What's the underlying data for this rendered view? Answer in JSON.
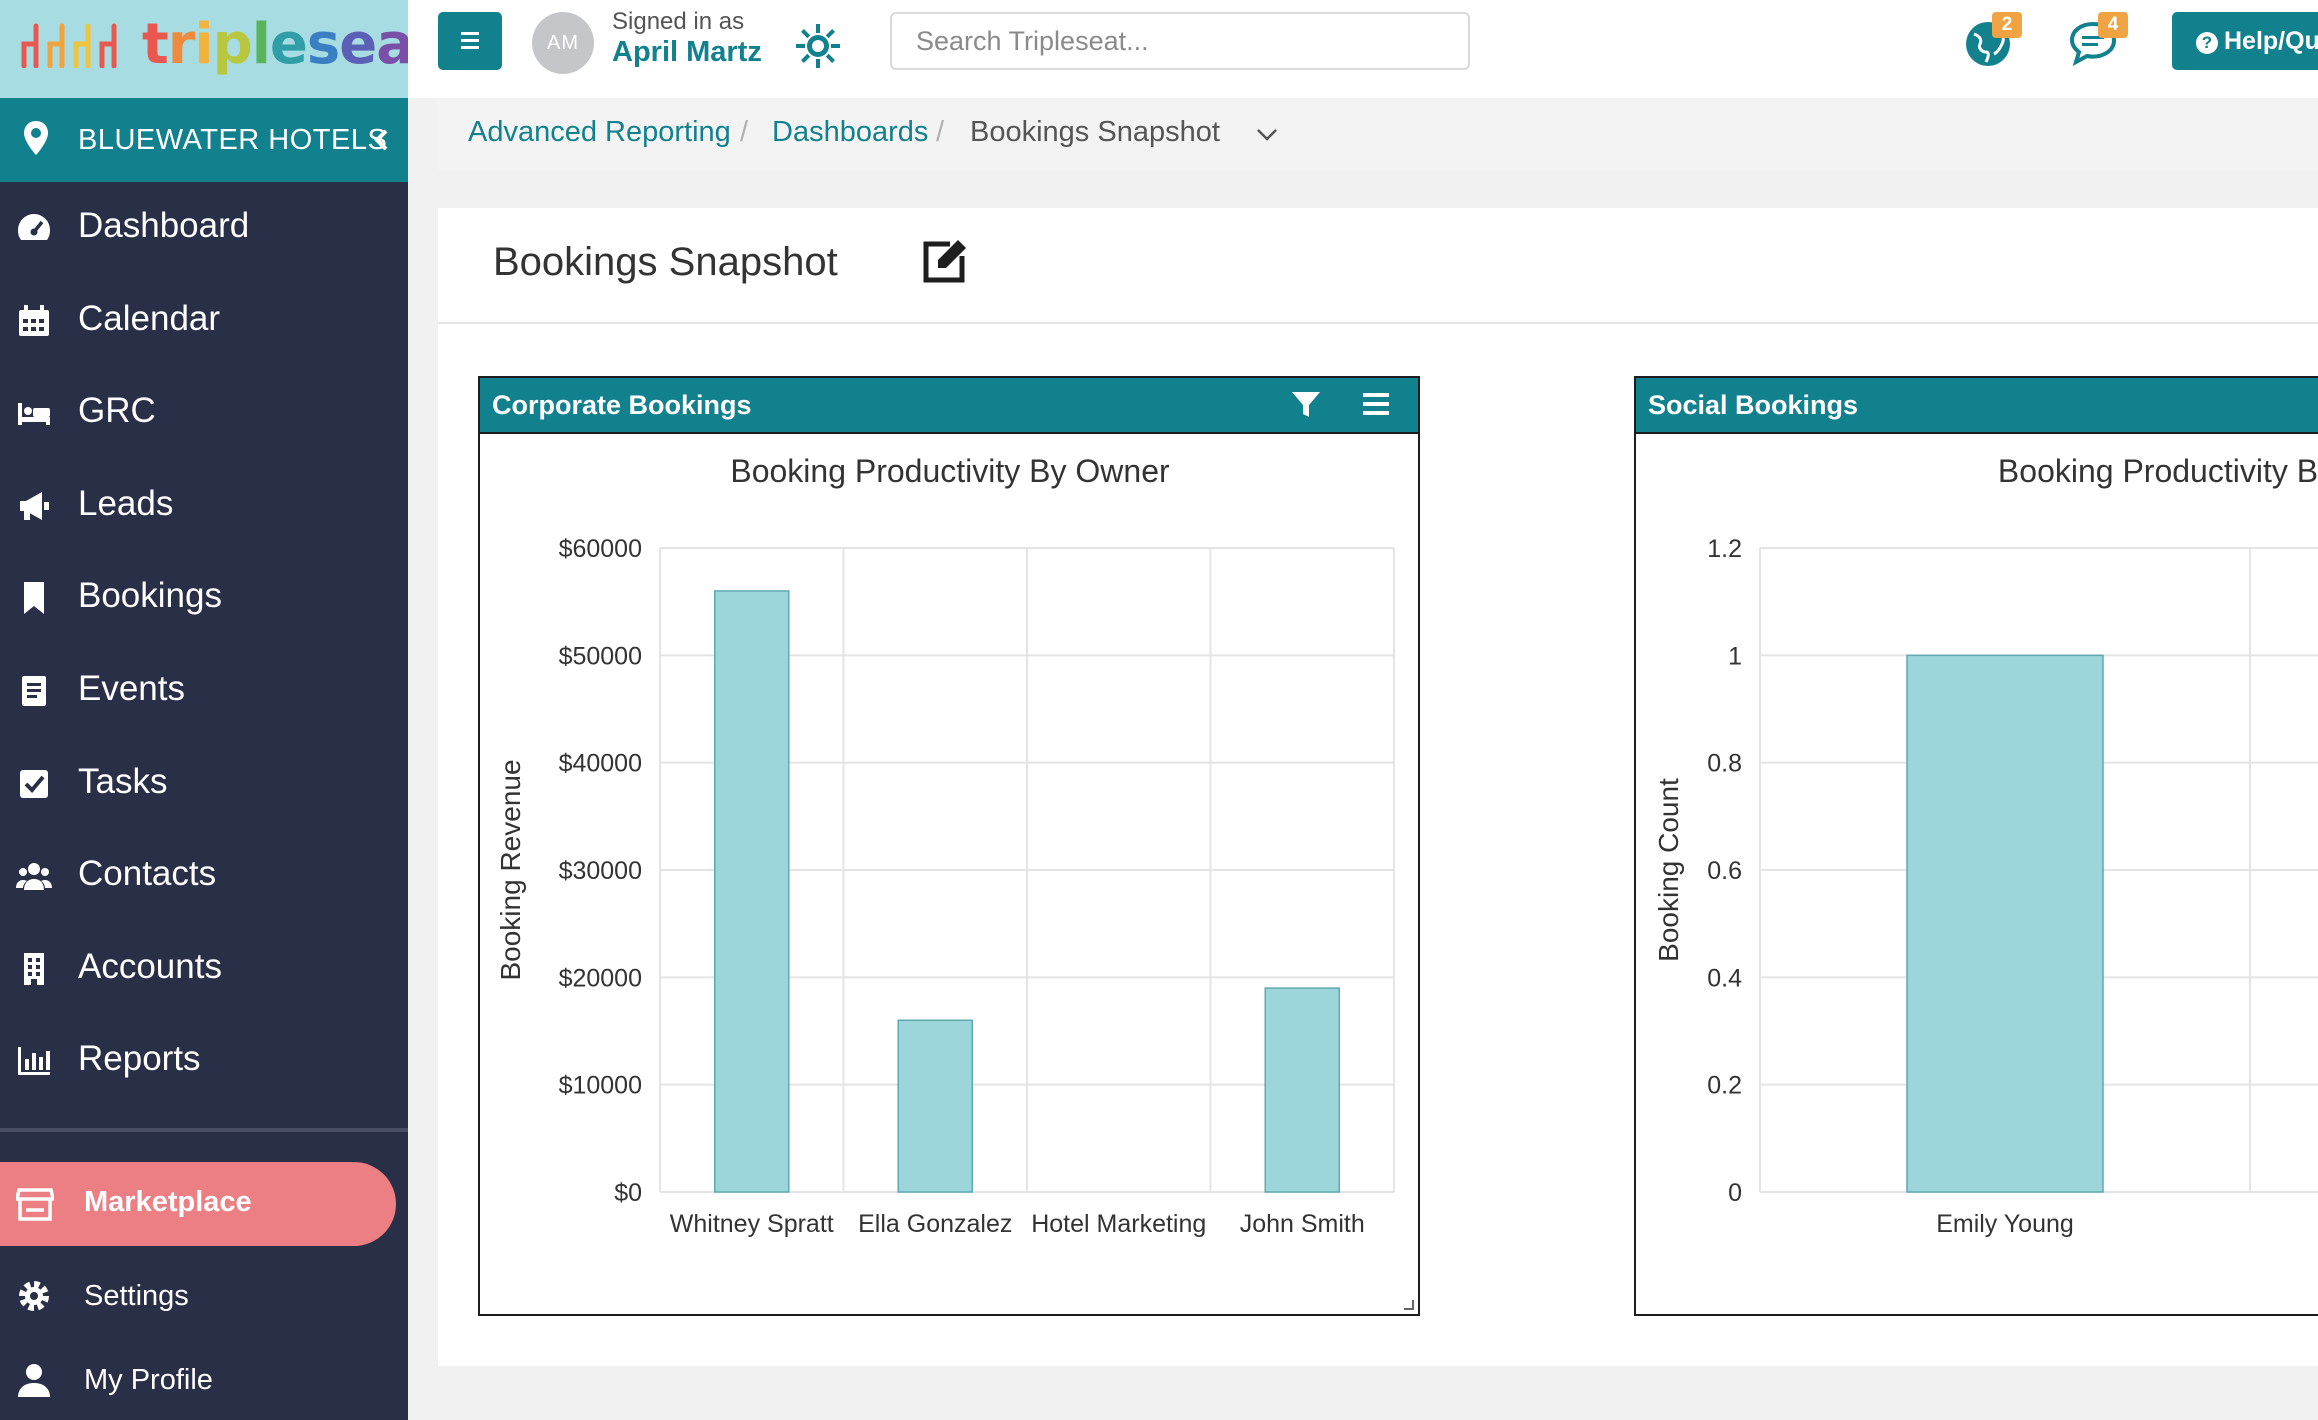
{
  "logo": {
    "text": "tripleseat"
  },
  "location": {
    "label": "BLUEWATER HOTELS"
  },
  "nav": {
    "items": [
      {
        "label": "Dashboard",
        "icon": "gauge-icon"
      },
      {
        "label": "Calendar",
        "icon": "calendar-icon"
      },
      {
        "label": "GRC",
        "icon": "bed-icon"
      },
      {
        "label": "Leads",
        "icon": "megaphone-icon"
      },
      {
        "label": "Bookings",
        "icon": "bookmark-icon"
      },
      {
        "label": "Events",
        "icon": "book-icon"
      },
      {
        "label": "Tasks",
        "icon": "check-square-icon"
      },
      {
        "label": "Contacts",
        "icon": "users-icon"
      },
      {
        "label": "Accounts",
        "icon": "building-icon"
      },
      {
        "label": "Reports",
        "icon": "bar-chart-icon"
      }
    ],
    "marketplace": "Marketplace",
    "settings": "Settings",
    "profile": "My Profile"
  },
  "user": {
    "initials": "AM",
    "signed_in_as": "Signed in as",
    "name": "April Martz"
  },
  "search": {
    "placeholder": "Search Tripleseat..."
  },
  "notifications": {
    "globe_count": "2",
    "chat_count": "4"
  },
  "help": {
    "label": "Help/Qu"
  },
  "breadcrumb": {
    "reporting": "Advanced Reporting",
    "dashboards": "Dashboards",
    "current": "Bookings Snapshot",
    "sep": "/"
  },
  "page": {
    "title": "Bookings Snapshot"
  },
  "colors": {
    "teal": "#12818e",
    "bar": "#9dd6da",
    "bar_stroke": "#5fa9b0",
    "sidebar": "#2a2f48",
    "marketplace": "#ec7f84"
  },
  "widgets": {
    "corporate": {
      "title": "Corporate Bookings"
    },
    "social": {
      "title": "Social Bookings"
    }
  },
  "chart_data": [
    {
      "type": "bar",
      "title": "Booking Productivity By Owner",
      "xlabel": "",
      "ylabel": "Booking Revenue",
      "categories": [
        "Whitney Spratt",
        "Ella Gonzalez",
        "Hotel Marketing",
        "John Smith"
      ],
      "values": [
        56000,
        16000,
        0,
        19000
      ],
      "ylim": [
        0,
        60000
      ],
      "yticks": [
        0,
        10000,
        20000,
        30000,
        40000,
        50000,
        60000
      ],
      "ytick_labels": [
        "$0",
        "$10000",
        "$20000",
        "$30000",
        "$40000",
        "$50000",
        "$60000"
      ],
      "grid": true
    },
    {
      "type": "bar",
      "title": "Booking Productivity By",
      "xlabel": "",
      "ylabel": "Booking Count",
      "categories": [
        "Emily Young"
      ],
      "values": [
        1
      ],
      "ylim": [
        0,
        1.2
      ],
      "yticks": [
        0,
        0.2,
        0.4,
        0.6,
        0.8,
        1,
        1.2
      ],
      "ytick_labels": [
        "0",
        "0.2",
        "0.4",
        "0.6",
        "0.8",
        "1",
        "1.2"
      ],
      "grid": true
    }
  ]
}
